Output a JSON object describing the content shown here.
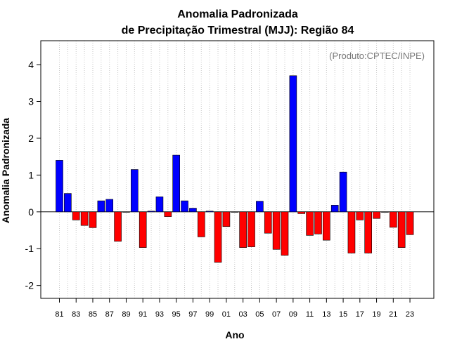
{
  "chart_data": {
    "type": "bar",
    "title_line1": "Anomalia Padronizada",
    "title_line2": "de Precipitação Trimestral (MJJ): Região 84",
    "xlabel": "Ano",
    "ylabel": "Anomalia Padronizada",
    "credit": "(Produto:CPTEC/INPE)",
    "ylim": [
      -2.35,
      4.65
    ],
    "yticks": [
      -2,
      -1,
      0,
      1,
      2,
      3,
      4
    ],
    "ytick_labels": [
      "-2",
      "-1",
      "0",
      "1",
      "2",
      "3",
      "4"
    ],
    "xtick_labels": [
      "81",
      "83",
      "85",
      "87",
      "89",
      "91",
      "93",
      "95",
      "97",
      "99",
      "01",
      "03",
      "05",
      "07",
      "09",
      "11",
      "13",
      "15",
      "17",
      "19",
      "21",
      "23"
    ],
    "categories": [
      "81",
      "82",
      "83",
      "84",
      "85",
      "86",
      "87",
      "88",
      "89",
      "90",
      "91",
      "92",
      "93",
      "94",
      "95",
      "96",
      "97",
      "98",
      "99",
      "00",
      "01",
      "02",
      "03",
      "04",
      "05",
      "06",
      "07",
      "08",
      "09",
      "10",
      "11",
      "12",
      "13",
      "14",
      "15",
      "16",
      "17",
      "18",
      "19",
      "20",
      "21",
      "22",
      "23"
    ],
    "values": [
      1.4,
      0.5,
      -0.22,
      -0.37,
      -0.43,
      0.3,
      0.34,
      -0.8,
      0.0,
      1.15,
      -0.97,
      0.02,
      0.41,
      -0.13,
      1.54,
      0.3,
      0.1,
      -0.68,
      0.02,
      -1.37,
      -0.4,
      0.0,
      -0.97,
      -0.95,
      0.29,
      -0.58,
      -1.02,
      -1.18,
      3.7,
      -0.05,
      -0.64,
      -0.6,
      -0.77,
      0.18,
      1.08,
      -1.12,
      -0.22,
      -1.12,
      -0.18,
      -0.01,
      -0.42,
      -0.97,
      -0.62
    ],
    "colors": {
      "positive": "#0000ff",
      "negative": "#ff0000",
      "outline": "#000000"
    },
    "grid": true
  }
}
